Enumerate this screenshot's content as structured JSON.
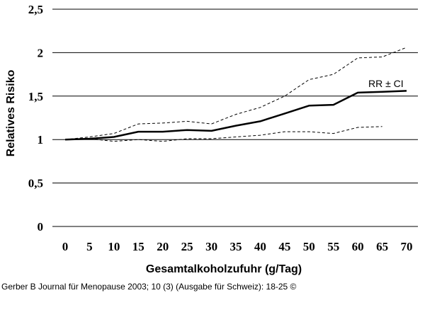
{
  "chart_data": {
    "type": "line",
    "xlabel": "Gesamtalkoholzufuhr (g/Tag)",
    "ylabel": "Relatives Risiko",
    "x_ticks": [
      0,
      5,
      10,
      15,
      20,
      25,
      30,
      35,
      40,
      45,
      50,
      55,
      60,
      65,
      70
    ],
    "y_ticks": [
      "0",
      "0,5",
      "1",
      "1,5",
      "2",
      "2,5"
    ],
    "xlim": [
      0,
      70
    ],
    "ylim": [
      0,
      2.5
    ],
    "grid": "horizontal",
    "annotation": "RR ± CI",
    "series": [
      {
        "role": "rr",
        "style": "solid",
        "x": [
          0,
          5,
          10,
          15,
          20,
          25,
          30,
          35,
          40,
          45,
          50,
          55,
          60,
          65,
          70
        ],
        "values": [
          1.0,
          1.01,
          1.03,
          1.09,
          1.09,
          1.11,
          1.1,
          1.16,
          1.21,
          1.3,
          1.39,
          1.4,
          1.54,
          1.55,
          1.56
        ]
      },
      {
        "role": "upper_ci",
        "style": "dashed",
        "x": [
          0,
          5,
          10,
          15,
          20,
          25,
          30,
          35,
          40,
          45,
          50,
          55,
          60,
          65,
          70
        ],
        "values": [
          1.0,
          1.03,
          1.07,
          1.18,
          1.19,
          1.21,
          1.18,
          1.29,
          1.37,
          1.5,
          1.69,
          1.75,
          1.94,
          1.95,
          2.06
        ]
      },
      {
        "role": "lower_ci",
        "style": "dashed",
        "x": [
          0,
          5,
          10,
          15,
          20,
          25,
          30,
          35,
          40,
          45,
          50,
          55,
          60,
          65
        ],
        "values": [
          1.0,
          1.01,
          0.98,
          1.0,
          0.98,
          1.01,
          1.01,
          1.03,
          1.05,
          1.09,
          1.09,
          1.07,
          1.14,
          1.15
        ]
      }
    ]
  },
  "caption": "Gerber B Journal für Menopause 2003; 10 (3) (Ausgabe für Schweiz): 18-25 ©"
}
